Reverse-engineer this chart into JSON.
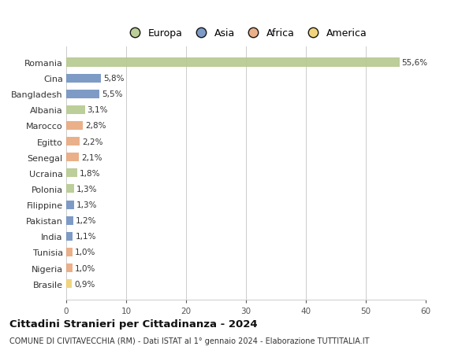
{
  "categories": [
    "Romania",
    "Cina",
    "Bangladesh",
    "Albania",
    "Marocco",
    "Egitto",
    "Senegal",
    "Ucraina",
    "Polonia",
    "Filippine",
    "Pakistan",
    "India",
    "Tunisia",
    "Nigeria",
    "Brasile"
  ],
  "values": [
    55.6,
    5.8,
    5.5,
    3.1,
    2.8,
    2.2,
    2.1,
    1.8,
    1.3,
    1.3,
    1.2,
    1.1,
    1.0,
    1.0,
    0.9
  ],
  "labels": [
    "55,6%",
    "5,8%",
    "5,5%",
    "3,1%",
    "2,8%",
    "2,2%",
    "2,1%",
    "1,8%",
    "1,3%",
    "1,3%",
    "1,2%",
    "1,1%",
    "1,0%",
    "1,0%",
    "0,9%"
  ],
  "continents": [
    "Europa",
    "Asia",
    "Asia",
    "Europa",
    "Africa",
    "Africa",
    "Africa",
    "Europa",
    "Europa",
    "Asia",
    "Asia",
    "Asia",
    "Africa",
    "Africa",
    "America"
  ],
  "colors": {
    "Europa": "#b5c98e",
    "Asia": "#7090c0",
    "Africa": "#e8a87c",
    "America": "#f0d070"
  },
  "legend_order": [
    "Europa",
    "Asia",
    "Africa",
    "America"
  ],
  "legend_colors": [
    "#b5c98e",
    "#7090c0",
    "#e8a87c",
    "#f0d070"
  ],
  "title": "Cittadini Stranieri per Cittadinanza - 2024",
  "subtitle": "COMUNE DI CIVITAVECCHIA (RM) - Dati ISTAT al 1° gennaio 2024 - Elaborazione TUTTITALIA.IT",
  "xlim": [
    0,
    60
  ],
  "xticks": [
    0,
    10,
    20,
    30,
    40,
    50,
    60
  ],
  "background_color": "#ffffff",
  "grid_color": "#cccccc"
}
